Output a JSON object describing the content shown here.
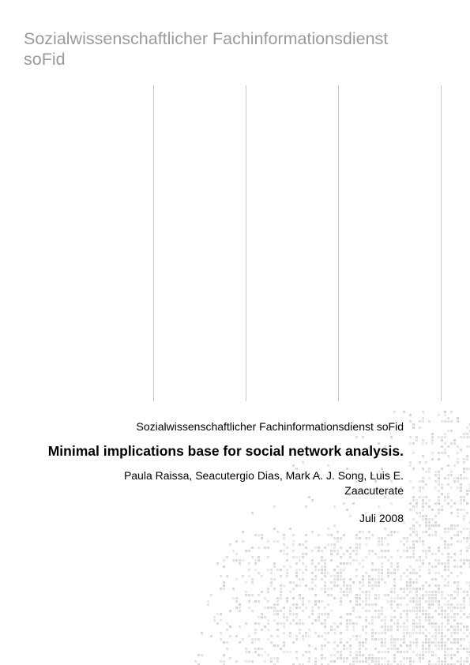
{
  "header": {
    "title_line1": "Sozialwissenschaftlicher Fachinformationsdienst",
    "title_line2": "soFid"
  },
  "document": {
    "publisher": "Sozialwissenschaftlicher Fachinformationsdienst soFid",
    "title": "Minimal implications base for social network analysis.",
    "authors_line1": "Paula Raissa, Seacutergio Dias, Mark A. J. Song, Luis E.",
    "authors_line2": "Zaacuterate",
    "date": "Juli 2008"
  },
  "colors": {
    "header_text": "#9a9a9a",
    "rule_lines": "#c8c8c8",
    "pattern": "#d4d4d4"
  }
}
